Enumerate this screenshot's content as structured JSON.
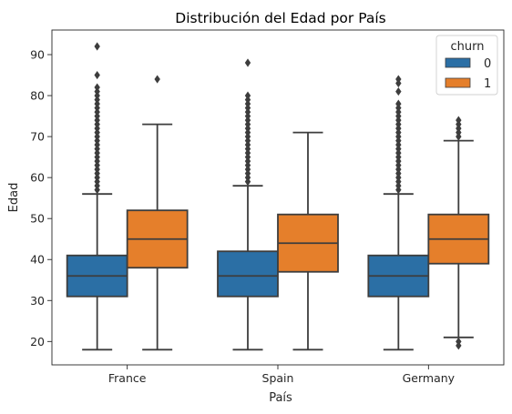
{
  "chart_data": {
    "type": "boxplot",
    "title": "Distribución del Edad por País",
    "xlabel": "País",
    "ylabel": "Edad",
    "categories": [
      "France",
      "Spain",
      "Germany"
    ],
    "ylim": [
      14.3,
      96
    ],
    "yticks": [
      20,
      30,
      40,
      50,
      60,
      70,
      80,
      90
    ],
    "grid": false,
    "legend": {
      "title": "churn",
      "placement": "top-right",
      "entries": [
        "0",
        "1"
      ]
    },
    "series": [
      {
        "name": "0",
        "color": "#2b6fa5",
        "boxes": [
          {
            "min": 18,
            "q1": 31,
            "median": 36,
            "q3": 41,
            "max": 56,
            "outliers": [
              57,
              58,
              59,
              60,
              61,
              62,
              63,
              64,
              65,
              66,
              67,
              68,
              69,
              70,
              71,
              72,
              73,
              74,
              75,
              76,
              77,
              78,
              79,
              80,
              81,
              82,
              85,
              92
            ]
          },
          {
            "min": 18,
            "q1": 31,
            "median": 36,
            "q3": 42,
            "max": 58,
            "outliers": [
              59,
              60,
              61,
              62,
              63,
              64,
              65,
              66,
              67,
              68,
              69,
              70,
              71,
              72,
              73,
              74,
              75,
              76,
              77,
              78,
              79,
              80,
              88
            ]
          },
          {
            "min": 18,
            "q1": 31,
            "median": 36,
            "q3": 41,
            "max": 56,
            "outliers": [
              57,
              58,
              59,
              60,
              61,
              62,
              63,
              64,
              65,
              66,
              67,
              68,
              69,
              70,
              71,
              72,
              73,
              74,
              75,
              76,
              77,
              78,
              81,
              83,
              84
            ]
          }
        ]
      },
      {
        "name": "1",
        "color": "#e57f2b",
        "boxes": [
          {
            "min": 18,
            "q1": 38,
            "median": 45,
            "q3": 52,
            "max": 73,
            "outliers": [
              84
            ]
          },
          {
            "min": 18,
            "q1": 37,
            "median": 44,
            "q3": 51,
            "max": 71,
            "outliers": []
          },
          {
            "min": 21,
            "q1": 39,
            "median": 45,
            "q3": 51,
            "max": 69,
            "outliers": [
              19,
              20,
              70,
              71,
              72,
              73,
              74
            ]
          }
        ]
      }
    ]
  }
}
